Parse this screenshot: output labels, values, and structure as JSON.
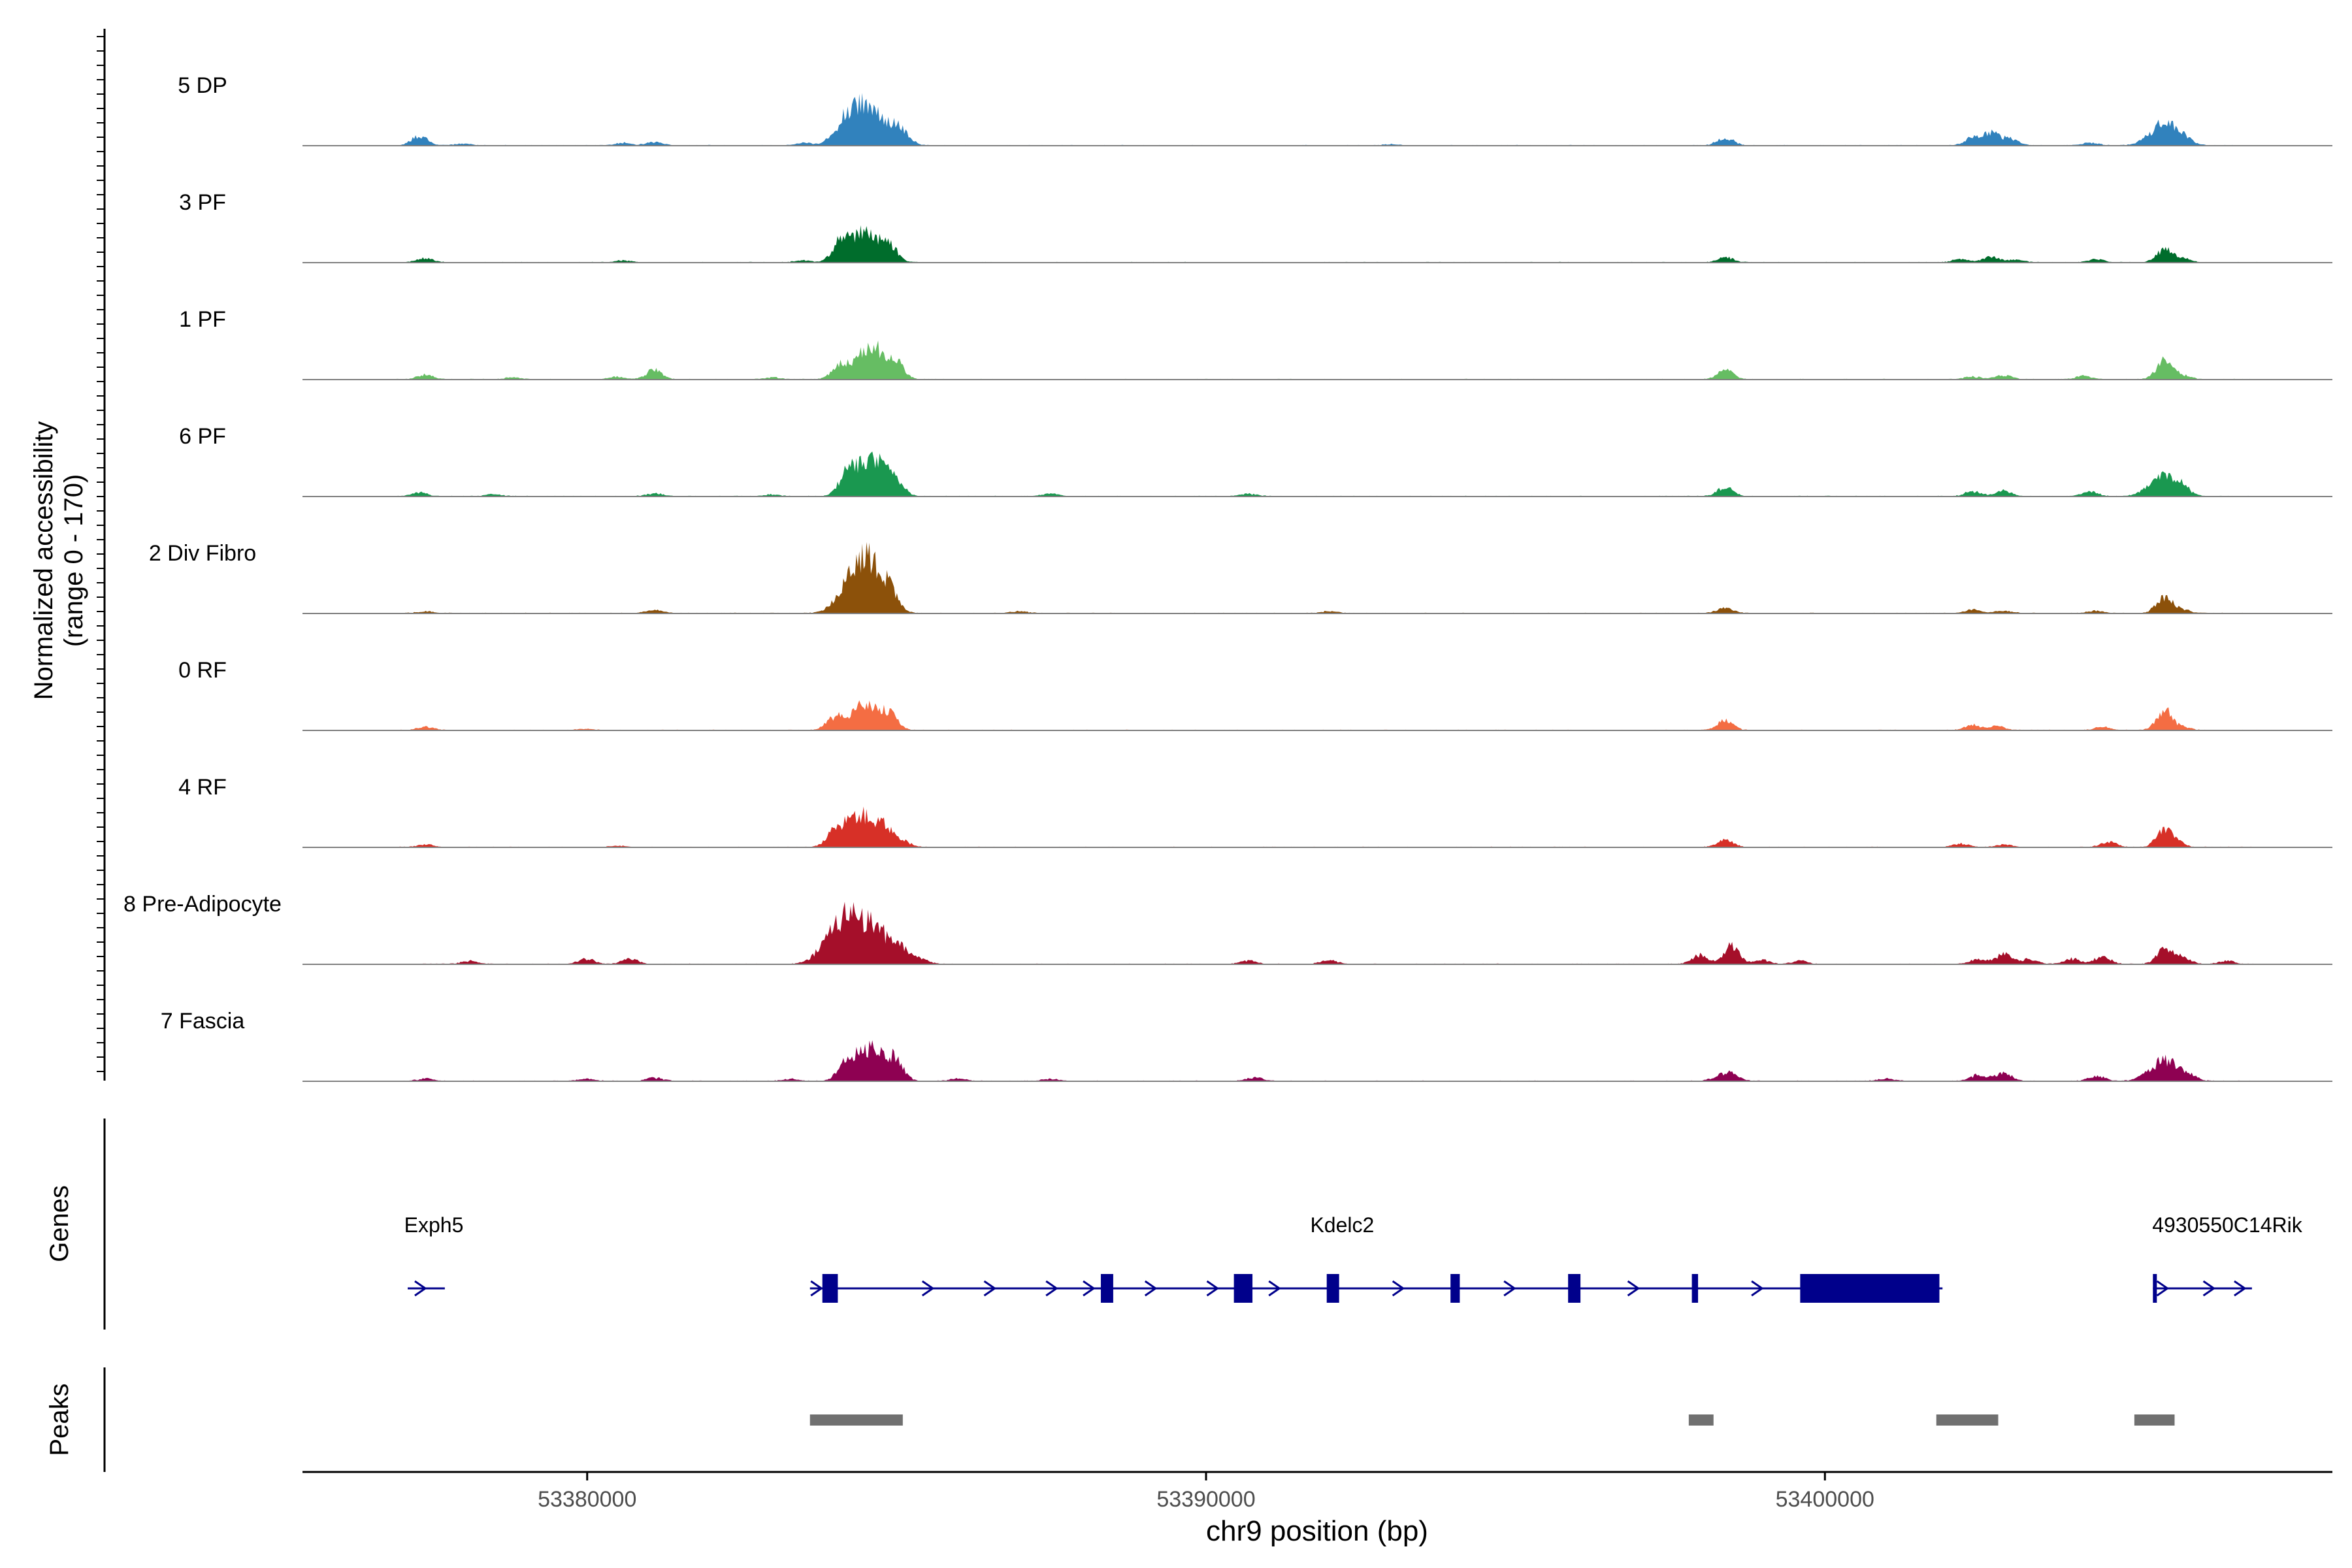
{
  "chart_data": {
    "type": "area",
    "title": "",
    "xlabel": "chr9 position (bp)",
    "ylabel": "Normalized accessibility",
    "ylabel_range": "(range 0 - 170)",
    "ylim": [
      0,
      170
    ],
    "xlim": [
      53375400,
      53408200
    ],
    "x_ticks": [
      53380000,
      53390000,
      53400000
    ],
    "x_tick_labels": [
      "53380000",
      "53390000",
      "53400000"
    ],
    "colors": {
      "genes": "#00008B",
      "peaks": "#707070",
      "axis": "#000000",
      "baseline": "#7f7f7f"
    },
    "tracks": [
      {
        "name": "5 DP",
        "color": "#3182BD",
        "peaks": [
          [
            53377300,
            15
          ],
          [
            53378000,
            3
          ],
          [
            53380600,
            4
          ],
          [
            53381100,
            5
          ],
          [
            53383500,
            4
          ],
          [
            53384300,
            52
          ],
          [
            53384700,
            45
          ],
          [
            53385100,
            18
          ],
          [
            53393000,
            2
          ],
          [
            53398400,
            12
          ],
          [
            53402400,
            12
          ],
          [
            53402700,
            18
          ],
          [
            53403000,
            10
          ],
          [
            53404300,
            4
          ],
          [
            53405500,
            34
          ],
          [
            53405800,
            6
          ]
        ]
      },
      {
        "name": "3 PF",
        "color": "#006D2C",
        "peaks": [
          [
            53377400,
            6
          ],
          [
            53380600,
            3
          ],
          [
            53383500,
            3
          ],
          [
            53384100,
            28
          ],
          [
            53384500,
            48
          ],
          [
            53384900,
            22
          ],
          [
            53398400,
            8
          ],
          [
            53402200,
            5
          ],
          [
            53402700,
            9
          ],
          [
            53403100,
            4
          ],
          [
            53404400,
            5
          ],
          [
            53405500,
            20
          ],
          [
            53405800,
            6
          ]
        ]
      },
      {
        "name": "1 PF",
        "color": "#66BD63",
        "peaks": [
          [
            53377400,
            7
          ],
          [
            53378800,
            3
          ],
          [
            53380500,
            4
          ],
          [
            53381100,
            15
          ],
          [
            53383000,
            3
          ],
          [
            53384100,
            20
          ],
          [
            53384600,
            52
          ],
          [
            53385000,
            22
          ],
          [
            53398400,
            14
          ],
          [
            53402400,
            4
          ],
          [
            53402900,
            6
          ],
          [
            53404200,
            5
          ],
          [
            53405500,
            30
          ],
          [
            53405800,
            6
          ]
        ]
      },
      {
        "name": "6 PF",
        "color": "#1A9850",
        "peaks": [
          [
            53377300,
            6
          ],
          [
            53378500,
            3
          ],
          [
            53381100,
            5
          ],
          [
            53383000,
            3
          ],
          [
            53384200,
            28
          ],
          [
            53384600,
            60
          ],
          [
            53385000,
            20
          ],
          [
            53387500,
            4
          ],
          [
            53390700,
            4
          ],
          [
            53398400,
            14
          ],
          [
            53402400,
            8
          ],
          [
            53402900,
            8
          ],
          [
            53404300,
            7
          ],
          [
            53405500,
            35
          ],
          [
            53405800,
            5
          ]
        ]
      },
      {
        "name": "2 Div Fibro",
        "color": "#8C510A",
        "peaks": [
          [
            53377400,
            3
          ],
          [
            53381100,
            5
          ],
          [
            53384300,
            45
          ],
          [
            53384600,
            68
          ],
          [
            53384900,
            18
          ],
          [
            53387000,
            3
          ],
          [
            53392000,
            3
          ],
          [
            53398400,
            8
          ],
          [
            53402400,
            6
          ],
          [
            53402900,
            4
          ],
          [
            53404400,
            4
          ],
          [
            53405500,
            26
          ],
          [
            53405800,
            5
          ]
        ]
      },
      {
        "name": "0 RF",
        "color": "#F46D43",
        "peaks": [
          [
            53377400,
            5
          ],
          [
            53380000,
            2
          ],
          [
            53384000,
            18
          ],
          [
            53384500,
            42
          ],
          [
            53384900,
            20
          ],
          [
            53398400,
            15
          ],
          [
            53402400,
            8
          ],
          [
            53402800,
            6
          ],
          [
            53404500,
            5
          ],
          [
            53405500,
            30
          ],
          [
            53405800,
            4
          ]
        ]
      },
      {
        "name": "4 RF",
        "color": "#D73027",
        "peaks": [
          [
            53377400,
            4
          ],
          [
            53380500,
            2
          ],
          [
            53384000,
            20
          ],
          [
            53384400,
            52
          ],
          [
            53384800,
            28
          ],
          [
            53385100,
            10
          ],
          [
            53398400,
            11
          ],
          [
            53402200,
            5
          ],
          [
            53402900,
            4
          ],
          [
            53404600,
            8
          ],
          [
            53405500,
            28
          ],
          [
            53405700,
            6
          ]
        ]
      },
      {
        "name": "8 Pre-Adipocyte",
        "color": "#A50F2A",
        "peaks": [
          [
            53378100,
            5
          ],
          [
            53380000,
            8
          ],
          [
            53380700,
            8
          ],
          [
            53384000,
            40
          ],
          [
            53384300,
            50
          ],
          [
            53384700,
            48
          ],
          [
            53385100,
            18
          ],
          [
            53385400,
            8
          ],
          [
            53390700,
            5
          ],
          [
            53392000,
            6
          ],
          [
            53398000,
            14
          ],
          [
            53398500,
            28
          ],
          [
            53399000,
            6
          ],
          [
            53399600,
            5
          ],
          [
            53402500,
            8
          ],
          [
            53402900,
            15
          ],
          [
            53403300,
            8
          ],
          [
            53404000,
            8
          ],
          [
            53404500,
            12
          ],
          [
            53405500,
            22
          ],
          [
            53405800,
            10
          ],
          [
            53406500,
            5
          ]
        ]
      },
      {
        "name": "7 Fascia",
        "color": "#8E0152",
        "peaks": [
          [
            53377400,
            4
          ],
          [
            53380000,
            3
          ],
          [
            53381100,
            5
          ],
          [
            53383300,
            3
          ],
          [
            53384200,
            28
          ],
          [
            53384600,
            52
          ],
          [
            53385000,
            26
          ],
          [
            53386000,
            4
          ],
          [
            53387500,
            3
          ],
          [
            53390800,
            5
          ],
          [
            53398300,
            6
          ],
          [
            53398500,
            11
          ],
          [
            53401000,
            4
          ],
          [
            53402500,
            10
          ],
          [
            53402900,
            12
          ],
          [
            53404400,
            8
          ],
          [
            53405500,
            32
          ],
          [
            53405900,
            6
          ]
        ]
      }
    ],
    "genes_track": {
      "label": "Genes",
      "genes": [
        {
          "name": "Exph5",
          "start": 53377100,
          "end": 53377700,
          "exons": [],
          "arrows": [
            53377300
          ]
        },
        {
          "name": "Kdelc2",
          "start": 53383600,
          "end": 53401900,
          "exons": [
            [
              53383800,
              53384050
            ],
            [
              53388300,
              53388500
            ],
            [
              53390450,
              53390750
            ],
            [
              53391950,
              53392150
            ],
            [
              53393950,
              53394100
            ],
            [
              53395850,
              53396050
            ],
            [
              53397850,
              53397950
            ],
            [
              53399600,
              53401850
            ]
          ],
          "arrows": [
            53383700,
            53385500,
            53386500,
            53387500,
            53388100,
            53389100,
            53390100,
            53391100,
            53393100,
            53394900,
            53396900,
            53398900
          ]
        },
        {
          "name": "4930550C14Rik",
          "start": 53405300,
          "end": 53406900,
          "exons": [
            [
              53405300,
              53405350
            ]
          ],
          "arrows": [
            53405450,
            53406200,
            53406700
          ]
        }
      ]
    },
    "peaks_track": {
      "label": "Peaks",
      "regions": [
        [
          53383600,
          53385100
        ],
        [
          53397800,
          53398200
        ],
        [
          53401800,
          53402800
        ],
        [
          53405000,
          53405650
        ]
      ]
    }
  }
}
